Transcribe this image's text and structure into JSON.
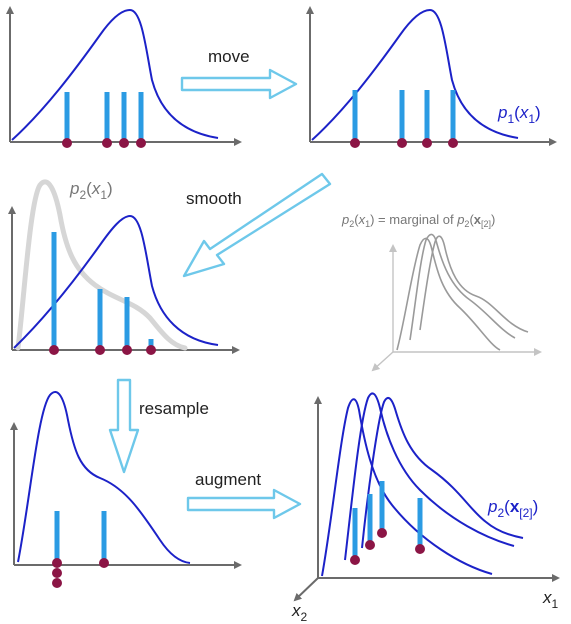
{
  "steps": {
    "move": "move",
    "smooth": "smooth",
    "resample": "resample",
    "augment": "augment"
  },
  "labels": {
    "p1_func": "p",
    "p1_sub": "1",
    "p1_arg_open": "(",
    "p1_var": "x",
    "p1_var_sub": "1",
    "p1_arg_close": ")",
    "p2x1_func": "p",
    "p2x1_sub": "2",
    "p2x1_arg_open": "(",
    "p2x1_var": "x",
    "p2x1_var_sub": "1",
    "p2x1_arg_close": ")",
    "marginal_p": "p",
    "marginal_p_sub": "2",
    "marginal_open": "(",
    "marginal_x": "x",
    "marginal_x_sub": "1",
    "marginal_text": ") = marginal of ",
    "marginal_p2": "p",
    "marginal_p2_sub": "2",
    "marginal_open2": "(",
    "marginal_bold_x": "x",
    "marginal_bold_sub": "[2]",
    "marginal_close2": ")",
    "p2x2_func": "p",
    "p2x2_sub": "2",
    "p2x2_open": "(",
    "p2x2_bold_x": "x",
    "p2x2_bold_sub": "[2]",
    "p2x2_close": ")",
    "axis_x1": "x",
    "axis_x1_sub": "1",
    "axis_x2": "x",
    "axis_x2_sub": "2"
  },
  "colors": {
    "curve": "#1c22c8",
    "bars": "#2b9be3",
    "dots": "#8b1545",
    "arrows": "#6ec8ea",
    "axes": "#6b6b6b"
  }
}
